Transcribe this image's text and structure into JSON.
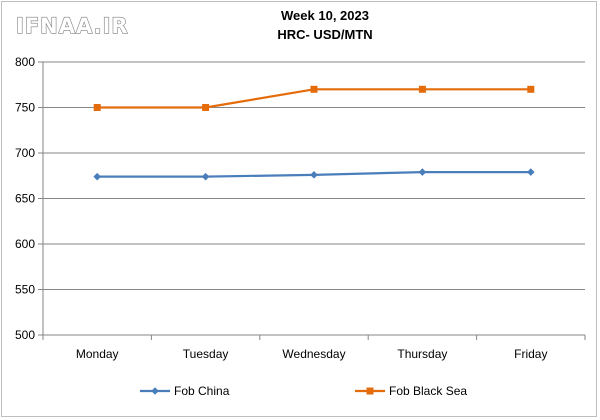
{
  "brand": {
    "logo_text": "IFNAA.IR"
  },
  "chart_data": {
    "type": "line",
    "title": "Week 10, 2023",
    "subtitle": "HRC- USD/MTN",
    "xlabel": "",
    "ylabel": "",
    "categories": [
      "Monday",
      "Tuesday",
      "Wednesday",
      "Thursday",
      "Friday"
    ],
    "ylim": [
      500,
      800
    ],
    "yticks": [
      500,
      550,
      600,
      650,
      700,
      750,
      800
    ],
    "grid": true,
    "legend_position": "bottom",
    "series": [
      {
        "name": "Fob China",
        "values": [
          674,
          674,
          676,
          679,
          679
        ],
        "color": "#4a7ebb",
        "marker": "diamond"
      },
      {
        "name": "Fob Black Sea",
        "values": [
          750,
          750,
          770,
          770,
          770
        ],
        "color": "#e46c0a",
        "marker": "square"
      }
    ]
  }
}
